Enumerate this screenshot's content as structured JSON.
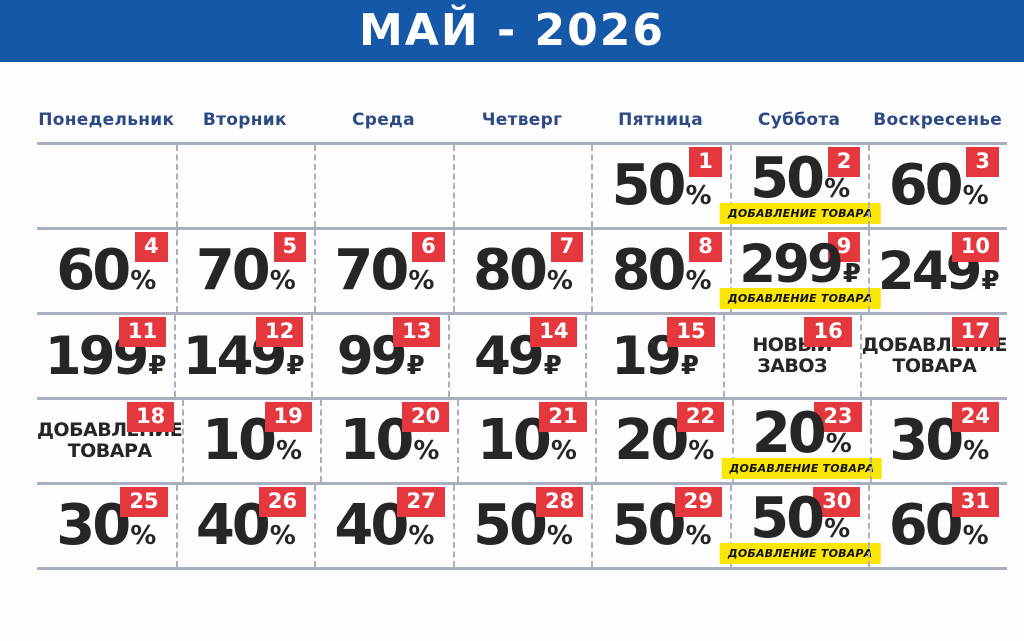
{
  "header": {
    "title": "МАЙ - 2026"
  },
  "weekdays": [
    "Понедельник",
    "Вторник",
    "Среда",
    "Четверг",
    "Пятница",
    "Суббота",
    "Воскресенье"
  ],
  "cells": [
    {
      "type": "empty"
    },
    {
      "type": "empty"
    },
    {
      "type": "empty"
    },
    {
      "type": "empty"
    },
    {
      "date": "1",
      "type": "percent",
      "value": "50",
      "suffix": "%"
    },
    {
      "date": "2",
      "type": "percent",
      "value": "50",
      "suffix": "%",
      "label": "ДОБАВЛЕНИЕ ТОВАРА"
    },
    {
      "date": "3",
      "type": "percent",
      "value": "60",
      "suffix": "%"
    },
    {
      "date": "4",
      "type": "percent",
      "value": "60",
      "suffix": "%"
    },
    {
      "date": "5",
      "type": "percent",
      "value": "70",
      "suffix": "%"
    },
    {
      "date": "6",
      "type": "percent",
      "value": "70",
      "suffix": "%"
    },
    {
      "date": "7",
      "type": "percent",
      "value": "80",
      "suffix": "%"
    },
    {
      "date": "8",
      "type": "percent",
      "value": "80",
      "suffix": "%"
    },
    {
      "date": "9",
      "type": "price",
      "value": "299",
      "suffix": "₽",
      "label": "ДОБАВЛЕНИЕ ТОВАРА"
    },
    {
      "date": "10",
      "type": "price",
      "value": "249",
      "suffix": "₽"
    },
    {
      "date": "11",
      "type": "price",
      "value": "199",
      "suffix": "₽"
    },
    {
      "date": "12",
      "type": "price",
      "value": "149",
      "suffix": "₽"
    },
    {
      "date": "13",
      "type": "price",
      "value": "99",
      "suffix": "₽"
    },
    {
      "date": "14",
      "type": "price",
      "value": "49",
      "suffix": "₽"
    },
    {
      "date": "15",
      "type": "price",
      "value": "19",
      "suffix": "₽"
    },
    {
      "date": "16",
      "type": "text",
      "lines": [
        "НОВЫЙ",
        "ЗАВОЗ"
      ]
    },
    {
      "date": "17",
      "type": "text",
      "lines": [
        "ДОБАВЛЕНИЕ",
        "ТОВАРА"
      ]
    },
    {
      "date": "18",
      "type": "text",
      "lines": [
        "ДОБАВЛЕНИЕ",
        "ТОВАРА"
      ]
    },
    {
      "date": "19",
      "type": "percent",
      "value": "10",
      "suffix": "%"
    },
    {
      "date": "20",
      "type": "percent",
      "value": "10",
      "suffix": "%"
    },
    {
      "date": "21",
      "type": "percent",
      "value": "10",
      "suffix": "%"
    },
    {
      "date": "22",
      "type": "percent",
      "value": "20",
      "suffix": "%"
    },
    {
      "date": "23",
      "type": "percent",
      "value": "20",
      "suffix": "%",
      "label": "ДОБАВЛЕНИЕ ТОВАРА"
    },
    {
      "date": "24",
      "type": "percent",
      "value": "30",
      "suffix": "%"
    },
    {
      "date": "25",
      "type": "percent",
      "value": "30",
      "suffix": "%"
    },
    {
      "date": "26",
      "type": "percent",
      "value": "40",
      "suffix": "%"
    },
    {
      "date": "27",
      "type": "percent",
      "value": "40",
      "suffix": "%"
    },
    {
      "date": "28",
      "type": "percent",
      "value": "50",
      "suffix": "%"
    },
    {
      "date": "29",
      "type": "percent",
      "value": "50",
      "suffix": "%"
    },
    {
      "date": "30",
      "type": "percent",
      "value": "50",
      "suffix": "%",
      "label": "ДОБАВЛЕНИЕ ТОВАРА"
    },
    {
      "date": "31",
      "type": "percent",
      "value": "60",
      "suffix": "%"
    }
  ],
  "colors": {
    "page-bg": "#fdfdfd",
    "banner-bg": "#1558a7",
    "weekday": "#2d4a85",
    "grid-line": "#a9afbe",
    "dash-line": "#aab0bf",
    "number": "#262626",
    "badge-bg": "#e5383e",
    "badge-text": "#ffffff",
    "label-bg": "#fbe503",
    "label-text": "#111111"
  }
}
